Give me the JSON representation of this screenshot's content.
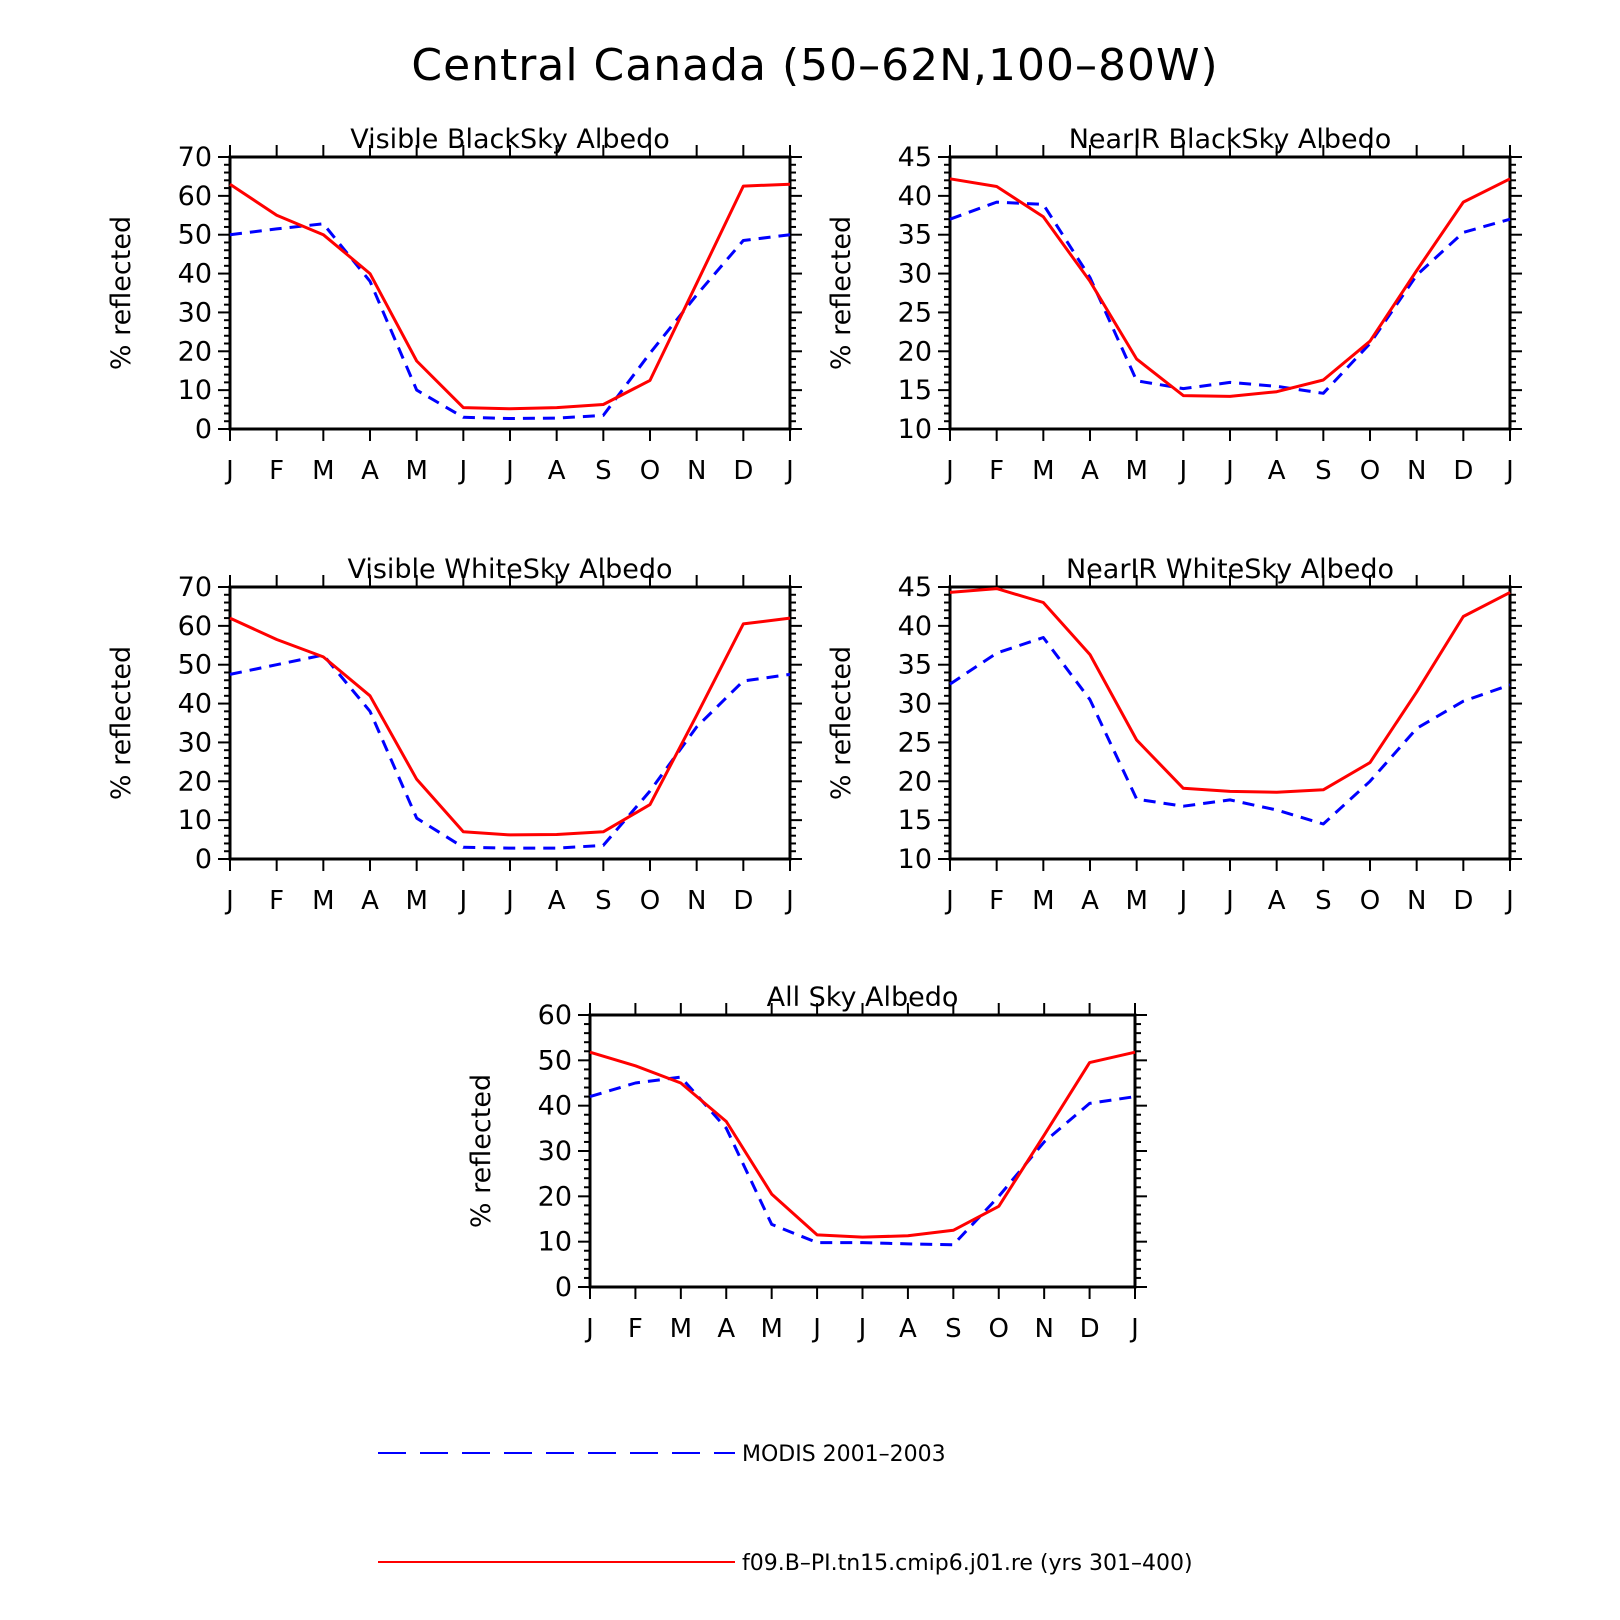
{
  "title": "Central Canada (50–62N,100–80W)",
  "legend": [
    {
      "label": "MODIS 2001–2003",
      "color": "#0000ff",
      "dash": true
    },
    {
      "label": "f09.B–PI.tn15.cmip6.j01.re (yrs 301–400)",
      "color": "#ff0000",
      "dash": false
    }
  ],
  "chart_data": [
    {
      "type": "line",
      "title": "Visible BlackSky Albedo",
      "ylabel": "% reflected",
      "categories": [
        "J",
        "F",
        "M",
        "A",
        "M",
        "J",
        "J",
        "A",
        "S",
        "O",
        "N",
        "D",
        "J"
      ],
      "ylim": [
        0,
        70
      ],
      "yticks": [
        0,
        10,
        20,
        30,
        40,
        50,
        60,
        70
      ],
      "series": [
        {
          "name": "MODIS 2001–2003",
          "color": "#0000ff",
          "dash": true,
          "values": [
            50.0,
            51.5,
            52.8,
            38.0,
            10.0,
            3.0,
            2.7,
            2.8,
            3.5,
            19.5,
            34.5,
            48.5,
            50.0
          ]
        },
        {
          "name": "f09.B–PI.tn15.cmip6.j01.re (yrs 301–400)",
          "color": "#ff0000",
          "dash": false,
          "values": [
            63.0,
            55.0,
            50.0,
            40.0,
            17.5,
            5.5,
            5.2,
            5.5,
            6.3,
            12.5,
            37.5,
            62.5,
            63.0
          ]
        }
      ]
    },
    {
      "type": "line",
      "title": "NearIR BlackSky Albedo",
      "ylabel": "% reflected",
      "categories": [
        "J",
        "F",
        "M",
        "A",
        "M",
        "J",
        "J",
        "A",
        "S",
        "O",
        "N",
        "D",
        "J"
      ],
      "ylim": [
        10,
        45
      ],
      "yticks": [
        10,
        15,
        20,
        25,
        30,
        35,
        40,
        45
      ],
      "series": [
        {
          "name": "MODIS 2001–2003",
          "color": "#0000ff",
          "dash": true,
          "values": [
            37.0,
            39.2,
            38.9,
            29.5,
            16.2,
            15.2,
            16.0,
            15.5,
            14.6,
            21.0,
            29.8,
            35.3,
            37.0
          ]
        },
        {
          "name": "f09.B–PI.tn15.cmip6.j01.re (yrs 301–400)",
          "color": "#ff0000",
          "dash": false,
          "values": [
            42.2,
            41.2,
            37.3,
            29.0,
            19.0,
            14.3,
            14.2,
            14.8,
            16.3,
            21.3,
            30.4,
            39.2,
            42.2
          ]
        }
      ]
    },
    {
      "type": "line",
      "title": "Visible WhiteSky Albedo",
      "ylabel": "% reflected",
      "categories": [
        "J",
        "F",
        "M",
        "A",
        "M",
        "J",
        "J",
        "A",
        "S",
        "O",
        "N",
        "D",
        "J"
      ],
      "ylim": [
        0,
        70
      ],
      "yticks": [
        0,
        10,
        20,
        30,
        40,
        50,
        60,
        70
      ],
      "series": [
        {
          "name": "MODIS 2001–2003",
          "color": "#0000ff",
          "dash": true,
          "values": [
            47.5,
            50.0,
            52.5,
            38.0,
            10.5,
            3.0,
            2.8,
            2.8,
            3.5,
            17.5,
            34.0,
            45.8,
            47.5
          ]
        },
        {
          "name": "f09.B–PI.tn15.cmip6.j01.re (yrs 301–400)",
          "color": "#ff0000",
          "dash": false,
          "values": [
            62.0,
            56.5,
            52.0,
            42.0,
            20.5,
            7.0,
            6.2,
            6.3,
            7.0,
            14.0,
            37.0,
            60.5,
            62.0
          ]
        }
      ]
    },
    {
      "type": "line",
      "title": "NearIR WhiteSky Albedo",
      "ylabel": "% reflected",
      "categories": [
        "J",
        "F",
        "M",
        "A",
        "M",
        "J",
        "J",
        "A",
        "S",
        "O",
        "N",
        "D",
        "J"
      ],
      "ylim": [
        10,
        45
      ],
      "yticks": [
        10,
        15,
        20,
        25,
        30,
        35,
        40,
        45
      ],
      "series": [
        {
          "name": "MODIS 2001–2003",
          "color": "#0000ff",
          "dash": true,
          "values": [
            32.5,
            36.5,
            38.5,
            30.5,
            17.7,
            16.8,
            17.6,
            16.3,
            14.5,
            20.0,
            26.8,
            30.3,
            32.4
          ]
        },
        {
          "name": "f09.B–PI.tn15.cmip6.j01.re (yrs 301–400)",
          "color": "#ff0000",
          "dash": false,
          "values": [
            44.3,
            44.8,
            43.0,
            36.3,
            25.3,
            19.1,
            18.7,
            18.6,
            18.9,
            22.4,
            31.5,
            41.2,
            44.3
          ]
        }
      ]
    },
    {
      "type": "line",
      "title": "All Sky Albedo",
      "ylabel": "% reflected",
      "categories": [
        "J",
        "F",
        "M",
        "A",
        "M",
        "J",
        "J",
        "A",
        "S",
        "O",
        "N",
        "D",
        "J"
      ],
      "ylim": [
        0,
        60
      ],
      "yticks": [
        0,
        10,
        20,
        30,
        40,
        50,
        60
      ],
      "series": [
        {
          "name": "MODIS 2001–2003",
          "color": "#0000ff",
          "dash": true,
          "values": [
            42.0,
            45.0,
            46.3,
            35.0,
            13.8,
            9.8,
            9.8,
            9.5,
            9.3,
            20.0,
            32.0,
            40.5,
            42.0
          ]
        },
        {
          "name": "f09.B–PI.tn15.cmip6.j01.re (yrs 301–400)",
          "color": "#ff0000",
          "dash": false,
          "values": [
            51.8,
            48.8,
            45.0,
            36.5,
            20.5,
            11.5,
            11.0,
            11.3,
            12.5,
            17.8,
            33.5,
            49.5,
            51.8
          ]
        }
      ]
    }
  ]
}
